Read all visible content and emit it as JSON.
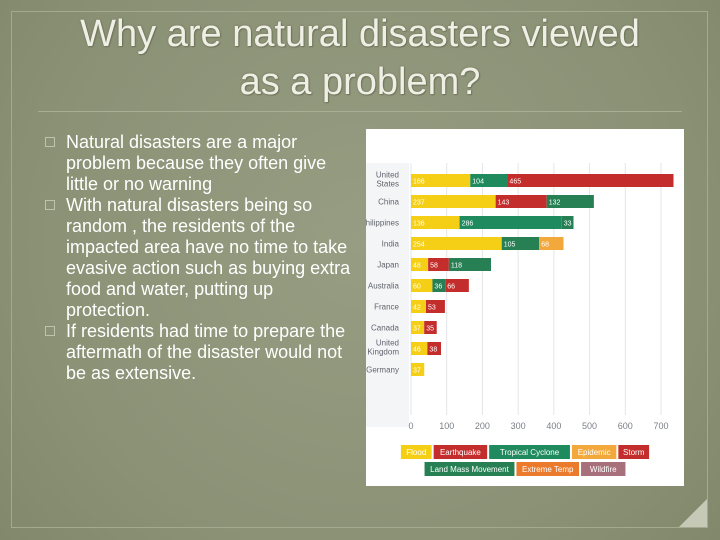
{
  "slide": {
    "title_line1": "Why are natural disasters viewed",
    "title_line2": "as a  problem?",
    "bullets": [
      "Natural disasters are a major problem because they often give little or no warning",
      "With natural disasters being so random , the residents of the impacted area have no time to take evasive action such as buying extra food and water, putting up protection.",
      "If residents had time to prepare the aftermath of the disaster would not be as extensive."
    ]
  },
  "chart_data": {
    "type": "bar",
    "stacked": true,
    "orientation": "horizontal",
    "categories": [
      "United States",
      "China",
      "Philippines",
      "India",
      "Japan",
      "Australia",
      "France",
      "Canada",
      "United Kingdom",
      "Germany"
    ],
    "category_lines": [
      [
        "United",
        "States"
      ],
      [
        "China"
      ],
      [
        "Philippines"
      ],
      [
        "India"
      ],
      [
        "Japan"
      ],
      [
        "Australia"
      ],
      [
        "France"
      ],
      [
        "Canada"
      ],
      [
        "United",
        "Kingdom"
      ],
      [
        "Germany"
      ]
    ],
    "xlim": [
      0,
      700
    ],
    "xticks": [
      0,
      100,
      200,
      300,
      400,
      500,
      600,
      700
    ],
    "rows": [
      [
        {
          "type": "Flood",
          "value": 166
        },
        {
          "type": "Tropical Cyclone",
          "value": 104
        },
        {
          "type": "Storm",
          "value": 465
        }
      ],
      [
        {
          "type": "Flood",
          "value": 237
        },
        {
          "type": "Storm",
          "value": 143
        },
        {
          "type": "Land Mass Movement",
          "value": 132
        }
      ],
      [
        {
          "type": "Flood",
          "value": 136
        },
        {
          "type": "Tropical Cyclone",
          "value": 286
        },
        {
          "type": "Land Mass Movement",
          "value": 33
        }
      ],
      [
        {
          "type": "Flood",
          "value": 254
        },
        {
          "type": "Land Mass Movement",
          "value": 105
        },
        {
          "type": "Epidemic",
          "value": 68
        }
      ],
      [
        {
          "type": "Flood",
          "value": 48
        },
        {
          "type": "Storm",
          "value": 58
        },
        {
          "type": "Land Mass Movement",
          "value": 118
        }
      ],
      [
        {
          "type": "Flood",
          "value": 60
        },
        {
          "type": "Land Mass Movement",
          "value": 36
        },
        {
          "type": "Storm",
          "value": 66
        }
      ],
      [
        {
          "type": "Flood",
          "value": 42
        },
        {
          "type": "Storm",
          "value": 53
        }
      ],
      [
        {
          "type": "Flood",
          "value": 37
        },
        {
          "type": "Storm",
          "value": 35
        }
      ],
      [
        {
          "type": "Flood",
          "value": 46
        },
        {
          "type": "Storm",
          "value": 38
        }
      ],
      [
        {
          "type": "Flood",
          "value": 37
        }
      ]
    ],
    "legend": {
      "row1": [
        "Flood",
        "Earthquake",
        "Tropical Cyclone",
        "Epidemic",
        "Storm"
      ],
      "row2": [
        "Land Mass Movement",
        "Extreme Temp",
        "Wildfire"
      ]
    },
    "colors": {
      "Flood": "#f5cf16",
      "Earthquake": "#c32d2b",
      "Tropical Cyclone": "#1e8a5e",
      "Epidemic": "#f2a83a",
      "Storm": "#c32d2b",
      "Land Mass Movement": "#268054",
      "Extreme Temp": "#eb7a2c",
      "Wildfire": "#a8707a"
    }
  }
}
